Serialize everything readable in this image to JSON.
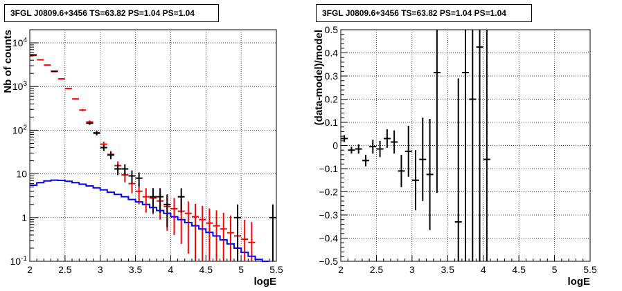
{
  "chart_data": [
    {
      "type": "scatter",
      "title": "3FGL J0809.6+3456 TS=63.82 PS=1.04 PS=1.04",
      "xlabel": "logE",
      "ylabel": "Nb of counts",
      "xlim": [
        2,
        5.5
      ],
      "ylim": [
        0.1,
        20000
      ],
      "yscale": "log",
      "grid": true,
      "x_ticks": [
        2,
        2.5,
        3,
        3.5,
        4,
        4.5,
        5,
        5.5
      ],
      "x_tick_labels": [
        "2",
        "2.5",
        "3",
        "3.5",
        "4",
        "4.5",
        "5",
        "5.5"
      ],
      "y_ticks": [
        0.1,
        1,
        10,
        100,
        1000,
        10000
      ],
      "y_tick_labels": [
        "10$^{-1}$",
        "1",
        "10",
        "10$^{2}$",
        "10$^{3}$",
        "10$^{4}$"
      ],
      "series": [
        {
          "color": "#ff0000",
          "style": "markers_with_errors",
          "x": [
            2.05,
            2.15,
            2.25,
            2.35,
            2.45,
            2.55,
            2.65,
            2.75,
            2.85,
            2.95,
            3.05,
            3.15,
            3.25,
            3.35,
            3.45,
            3.55,
            3.65,
            3.75,
            3.85,
            3.95,
            4.05,
            4.15,
            4.25,
            4.35,
            4.45,
            4.55,
            4.65,
            4.75,
            4.85,
            4.95,
            5.05,
            5.15
          ],
          "y": [
            5200,
            4100,
            3100,
            2200,
            1500,
            900,
            520,
            290,
            155,
            85,
            48,
            28,
            15.5,
            9.5,
            6,
            4,
            3,
            2.8,
            2.4,
            1.8,
            1.6,
            1.4,
            1.25,
            1.05,
            0.9,
            0.75,
            0.65,
            0.55,
            0.45,
            0.38,
            0.32,
            0.27
          ],
          "yerr": [
            72,
            64,
            56,
            47,
            39,
            30,
            23,
            17,
            12.5,
            9.2,
            6.9,
            5.3,
            3.9,
            3.1,
            2.4,
            2,
            1.7,
            1.6,
            1.5,
            1.3,
            1.2,
            1.15,
            1.1,
            1.02,
            0.95,
            0.87,
            0.81,
            0.74,
            0.67,
            0.62,
            0.57,
            0.52
          ]
        },
        {
          "color": "#000000",
          "style": "markers_with_errors",
          "x": [
            2.05,
            2.35,
            2.85,
            2.95,
            3.05,
            3.15,
            3.25,
            3.35,
            3.45,
            3.55,
            3.75,
            3.85,
            3.95,
            4.15,
            4.95,
            5.45
          ],
          "y": [
            5300,
            2250,
            145,
            87,
            40,
            27,
            13,
            13,
            9,
            8,
            3,
            3,
            2,
            3,
            1,
            1
          ],
          "yerr": [
            73,
            47,
            12,
            9.3,
            6.3,
            5.2,
            3.6,
            3.6,
            3,
            2.8,
            1.7,
            1.7,
            1.4,
            1.7,
            1,
            1
          ]
        },
        {
          "color": "#0000ff",
          "style": "step",
          "x": [
            2.0,
            2.1,
            2.2,
            2.3,
            2.4,
            2.5,
            2.6,
            2.7,
            2.8,
            2.9,
            3.0,
            3.1,
            3.2,
            3.3,
            3.4,
            3.5,
            3.6,
            3.7,
            3.8,
            3.9,
            4.0,
            4.1,
            4.2,
            4.3,
            4.4,
            4.5,
            4.6,
            4.7,
            4.8,
            4.9,
            5.0,
            5.1,
            5.2,
            5.3
          ],
          "y": [
            5.5,
            6.3,
            6.9,
            7.2,
            7.1,
            6.8,
            6.3,
            5.8,
            5.3,
            4.8,
            4.3,
            3.8,
            3.4,
            3.0,
            2.6,
            2.3,
            2.0,
            1.7,
            1.45,
            1.25,
            1.05,
            0.9,
            0.77,
            0.65,
            0.55,
            0.46,
            0.38,
            0.31,
            0.25,
            0.2,
            0.16,
            0.13,
            0.11,
            0.1
          ]
        }
      ]
    },
    {
      "type": "scatter",
      "title": "3FGL J0809.6+3456 TS=63.82 PS=1.04 PS=1.04",
      "xlabel": "logE",
      "ylabel": "(data-model)/model",
      "xlim": [
        2,
        5.5
      ],
      "ylim": [
        -0.5,
        0.5
      ],
      "grid": true,
      "x_ticks": [
        2,
        2.5,
        3,
        3.5,
        4,
        4.5,
        5,
        5.5
      ],
      "x_tick_labels": [
        "2",
        "2.5",
        "3",
        "3.5",
        "4",
        "4.5",
        "5",
        "5.5"
      ],
      "y_ticks": [
        -0.5,
        -0.4,
        -0.3,
        -0.2,
        -0.1,
        0,
        0.1,
        0.2,
        0.3,
        0.4,
        0.5
      ],
      "y_tick_labels": [
        "−0.5",
        "−0.4",
        "−0.3",
        "−0.2",
        "−0.1",
        "0",
        "0.1",
        "0.2",
        "0.3",
        "0.4",
        "0.5"
      ],
      "series": [
        {
          "color": "#000000",
          "style": "markers_with_errors",
          "x": [
            2.05,
            2.15,
            2.25,
            2.35,
            2.45,
            2.55,
            2.65,
            2.75,
            2.85,
            2.95,
            3.05,
            3.15,
            3.25,
            3.35,
            3.65,
            3.75,
            3.85,
            3.95,
            4.05
          ],
          "y": [
            0.03,
            -0.02,
            -0.015,
            -0.065,
            -0.005,
            -0.015,
            0.03,
            0.015,
            -0.11,
            -0.025,
            -0.15,
            -0.06,
            -0.125,
            0.315,
            -0.33,
            0.315,
            0.2,
            0.425,
            -0.06
          ],
          "yerr": [
            0.015,
            0.015,
            0.02,
            0.025,
            0.03,
            0.035,
            0.04,
            0.05,
            0.07,
            0.11,
            0.13,
            0.18,
            0.24,
            0.52,
            0.62,
            0.83,
            1.03,
            1.24,
            1.33
          ]
        }
      ]
    }
  ]
}
